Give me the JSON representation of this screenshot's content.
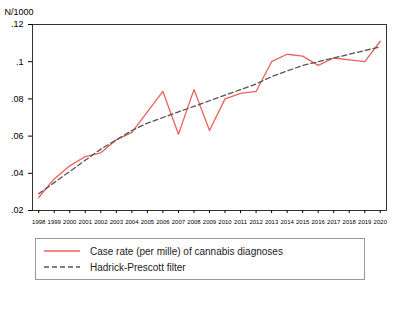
{
  "chart_data": {
    "type": "line",
    "ylabel": "N/1000",
    "x": [
      1998,
      1999,
      2000,
      2001,
      2002,
      2003,
      2004,
      2005,
      2006,
      2007,
      2008,
      2009,
      2010,
      2011,
      2012,
      2013,
      2014,
      2015,
      2016,
      2017,
      2018,
      2019,
      2020
    ],
    "series": [
      {
        "name": "Case rate (per mille) of cannabis diagnoses",
        "color": "#f0605a",
        "line_style": "solid",
        "values": [
          0.027,
          0.037,
          0.044,
          0.049,
          0.051,
          0.058,
          0.062,
          0.073,
          0.084,
          0.061,
          0.085,
          0.063,
          0.08,
          0.083,
          0.084,
          0.1,
          0.104,
          0.103,
          0.098,
          0.102,
          0.101,
          0.1,
          0.111
        ]
      },
      {
        "name": "Hadrick-Prescott filter",
        "color": "#555555",
        "line_style": "dashed",
        "values": [
          0.029,
          0.035,
          0.041,
          0.047,
          0.053,
          0.058,
          0.063,
          0.067,
          0.07,
          0.073,
          0.076,
          0.079,
          0.082,
          0.085,
          0.088,
          0.092,
          0.095,
          0.098,
          0.1,
          0.102,
          0.104,
          0.106,
          0.108
        ]
      }
    ],
    "xlim": [
      1997.6,
      2020.4
    ],
    "xticks": [
      1998,
      1999,
      2000,
      2001,
      2002,
      2003,
      2004,
      2005,
      2006,
      2007,
      2008,
      2009,
      2010,
      2011,
      2012,
      2013,
      2014,
      2015,
      2016,
      2017,
      2018,
      2019,
      2020
    ],
    "ylim": [
      0.02,
      0.12
    ],
    "yticks": [
      {
        "value": 0.02,
        "label": ".02"
      },
      {
        "value": 0.04,
        "label": ".04"
      },
      {
        "value": 0.06,
        "label": ".06"
      },
      {
        "value": 0.08,
        "label": ".08"
      },
      {
        "value": 0.1,
        "label": ".1"
      },
      {
        "value": 0.12,
        "label": ".12"
      }
    ],
    "grid": false,
    "legend": "bottom"
  }
}
